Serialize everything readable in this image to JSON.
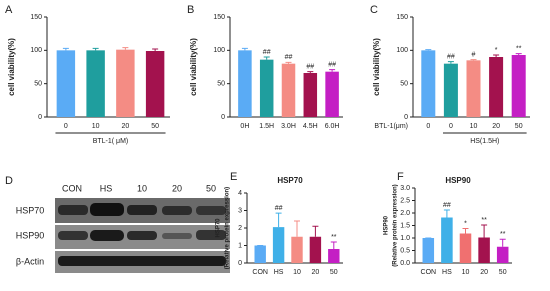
{
  "chart_data": [
    {
      "type": "bar",
      "panel_label": "A",
      "ylabel": "cell viability(%)",
      "xlabel": "BTL-1( μM)",
      "categories": [
        "0",
        "10",
        "20",
        "50"
      ],
      "values": [
        100,
        100,
        101,
        99
      ],
      "errors": [
        3,
        3,
        3,
        3
      ],
      "colors": [
        "#5aabf5",
        "#1f9e9e",
        "#f48c84",
        "#a3124e"
      ],
      "ylim": [
        0,
        150
      ],
      "yticks": [
        0,
        50,
        100,
        150
      ]
    },
    {
      "type": "bar",
      "panel_label": "B",
      "ylabel": "cell viability(%)",
      "categories": [
        "0H",
        "1.5H",
        "3.0H",
        "4.5H",
        "6.0H"
      ],
      "values": [
        100,
        86,
        80,
        66,
        68
      ],
      "errors": [
        3,
        4,
        2,
        2,
        3
      ],
      "annotations": [
        null,
        "##",
        "##",
        "##",
        "##"
      ],
      "colors": [
        "#5aabf5",
        "#1f9e9e",
        "#f48c84",
        "#a3124e",
        "#c41fc4"
      ],
      "ylim": [
        0,
        150
      ],
      "yticks": [
        0,
        50,
        100,
        150
      ]
    },
    {
      "type": "bar",
      "panel_label": "C",
      "ylabel": "cell viability(%)",
      "xlabel_left": "BTL-1(μm)",
      "xlabel": "HS(1.5H)",
      "categories": [
        "0",
        "0",
        "10",
        "20",
        "50"
      ],
      "values": [
        100,
        80,
        85,
        90,
        93
      ],
      "errors": [
        1,
        3,
        1,
        3,
        2
      ],
      "annotations": [
        null,
        "##",
        "#",
        "*",
        "**"
      ],
      "colors": [
        "#5aabf5",
        "#1f9e9e",
        "#f48c84",
        "#a3124e",
        "#c41fc4"
      ],
      "ylim": [
        0,
        150
      ],
      "yticks": [
        0,
        50,
        100,
        150
      ]
    },
    {
      "type": "bar",
      "panel_label": "E",
      "title": "HSP70",
      "ylabel": [
        "HSP70",
        "(Relative protein expression)"
      ],
      "categories": [
        "CON",
        "HS",
        "10",
        "20",
        "50"
      ],
      "values": [
        1,
        2.05,
        1.5,
        1.5,
        0.8
      ],
      "errors": [
        0,
        0.8,
        0.9,
        0.6,
        0.4
      ],
      "annotations": [
        null,
        "##",
        null,
        null,
        "**"
      ],
      "colors": [
        "#5aabf5",
        "#3fb0e8",
        "#f48c84",
        "#a3124e",
        "#c41fc4"
      ],
      "ylim": [
        0,
        4
      ],
      "yticks": [
        0,
        1,
        2,
        3,
        4
      ]
    },
    {
      "type": "bar",
      "panel_label": "F",
      "title": "HSP90",
      "ylabel": [
        "HSP90",
        "(Relative protein expression)"
      ],
      "categories": [
        "CON",
        "HS",
        "10",
        "20",
        "50"
      ],
      "values": [
        1,
        1.82,
        1.18,
        1.02,
        0.65
      ],
      "errors": [
        0,
        0.3,
        0.2,
        0.5,
        0.3
      ],
      "annotations": [
        null,
        "##",
        "*",
        "**",
        "**"
      ],
      "colors": [
        "#5aabf5",
        "#3fb0e8",
        "#f07070",
        "#a3124e",
        "#c41fc4"
      ],
      "ylim": [
        0,
        3
      ],
      "yticks": [
        {
          "value": 0,
          "label": "0.0"
        },
        {
          "value": 0.5,
          "label": "0.5"
        },
        {
          "value": 1,
          "label": "1.0"
        },
        {
          "value": 1.5,
          "label": "1.5"
        },
        {
          "value": 2,
          "label": "2.0"
        },
        {
          "value": 2.5,
          "label": "2.5"
        },
        {
          "value": 3,
          "label": "3.0"
        }
      ]
    }
  ],
  "blot": {
    "panel_label": "D",
    "lanes": [
      "CON",
      "HS",
      "10",
      "20",
      "50"
    ],
    "rows": [
      "HSP70",
      "HSP90",
      "β-Actin"
    ]
  }
}
